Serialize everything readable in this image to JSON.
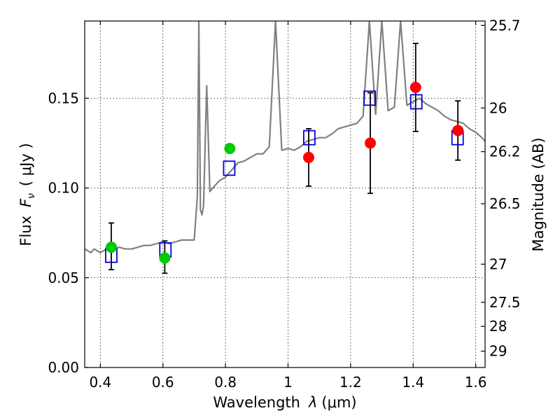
{
  "chart_data": {
    "type": "scatter",
    "xlabel_prefix": "Wavelength",
    "xlabel_symbol": "λ",
    "xlabel_unit": "(μm)",
    "ylabel_prefix": "Flux",
    "ylabel_symbol": "F",
    "ylabel_subscript": "ν",
    "ylabel_unit": "( μJy )",
    "y2label": "Magnitude (AB)",
    "xlim": [
      0.35,
      1.63
    ],
    "ylim": [
      0.0,
      0.193
    ],
    "grid": true,
    "x_ticks": [
      {
        "value": 0.4,
        "label": "0.4"
      },
      {
        "value": 0.6,
        "label": "0.6"
      },
      {
        "value": 0.8,
        "label": "0.8"
      },
      {
        "value": 1.0,
        "label": "1"
      },
      {
        "value": 1.2,
        "label": "1.2"
      },
      {
        "value": 1.4,
        "label": "1.4"
      },
      {
        "value": 1.6,
        "label": "1.6"
      }
    ],
    "y_ticks": [
      {
        "value": 0.0,
        "label": "0.00"
      },
      {
        "value": 0.05,
        "label": "0.05"
      },
      {
        "value": 0.1,
        "label": "0.10"
      },
      {
        "value": 0.15,
        "label": "0.15"
      }
    ],
    "y2_ticks": [
      {
        "mag": 25.7,
        "label": "25.7"
      },
      {
        "mag": 26.0,
        "label": "26"
      },
      {
        "mag": 26.2,
        "label": "26.2"
      },
      {
        "mag": 26.5,
        "label": "26.5"
      },
      {
        "mag": 27.0,
        "label": "27"
      },
      {
        "mag": 27.5,
        "label": "27.5"
      },
      {
        "mag": 28.0,
        "label": "28"
      },
      {
        "mag": 29.0,
        "label": "29"
      }
    ],
    "observed_optical": {
      "color": "#00cc00",
      "points": [
        {
          "x": 0.435,
          "y": 0.067,
          "yerr_low": 0.0125,
          "yerr_high": 0.0135
        },
        {
          "x": 0.606,
          "y": 0.061,
          "yerr_low": 0.0085,
          "yerr_high": 0.0095
        },
        {
          "x": 0.814,
          "y": 0.122,
          "yerr_low": 0.0,
          "yerr_high": 0.0
        }
      ]
    },
    "observed_nir": {
      "color": "#ff0000",
      "points": [
        {
          "x": 1.066,
          "y": 0.117,
          "yerr_low": 0.016,
          "yerr_high": 0.016
        },
        {
          "x": 1.263,
          "y": 0.125,
          "yerr_low": 0.028,
          "yerr_high": 0.028
        },
        {
          "x": 1.408,
          "y": 0.156,
          "yerr_low": 0.0245,
          "yerr_high": 0.0245
        },
        {
          "x": 1.543,
          "y": 0.132,
          "yerr_low": 0.0165,
          "yerr_high": 0.0165
        }
      ]
    },
    "model_photometry": {
      "color": "#0000dd",
      "points": [
        {
          "x": 0.435,
          "y": 0.0625
        },
        {
          "x": 0.608,
          "y": 0.0655
        },
        {
          "x": 0.812,
          "y": 0.111
        },
        {
          "x": 1.068,
          "y": 0.128
        },
        {
          "x": 1.261,
          "y": 0.15
        },
        {
          "x": 1.41,
          "y": 0.148
        },
        {
          "x": 1.542,
          "y": 0.128
        }
      ]
    },
    "model_spectrum": {
      "color": "#808080",
      "x": [
        0.35,
        0.36,
        0.37,
        0.38,
        0.39,
        0.4,
        0.42,
        0.44,
        0.46,
        0.48,
        0.5,
        0.52,
        0.54,
        0.56,
        0.58,
        0.6,
        0.62,
        0.64,
        0.66,
        0.68,
        0.7,
        0.71,
        0.715,
        0.72,
        0.725,
        0.73,
        0.74,
        0.75,
        0.76,
        0.78,
        0.8,
        0.82,
        0.84,
        0.86,
        0.88,
        0.9,
        0.92,
        0.94,
        0.96,
        0.98,
        1.0,
        1.02,
        1.04,
        1.06,
        1.08,
        1.1,
        1.12,
        1.14,
        1.16,
        1.18,
        1.2,
        1.22,
        1.24,
        1.26,
        1.28,
        1.3,
        1.32,
        1.34,
        1.36,
        1.38,
        1.4,
        1.42,
        1.44,
        1.46,
        1.48,
        1.5,
        1.52,
        1.54,
        1.56,
        1.58,
        1.6,
        1.62,
        1.63
      ],
      "y": [
        0.066,
        0.065,
        0.064,
        0.066,
        0.065,
        0.064,
        0.066,
        0.066,
        0.067,
        0.066,
        0.066,
        0.067,
        0.068,
        0.068,
        0.069,
        0.07,
        0.069,
        0.07,
        0.071,
        0.071,
        0.071,
        0.095,
        0.193,
        0.088,
        0.085,
        0.09,
        0.157,
        0.098,
        0.1,
        0.104,
        0.106,
        0.11,
        0.114,
        0.115,
        0.117,
        0.119,
        0.119,
        0.123,
        0.193,
        0.121,
        0.122,
        0.121,
        0.123,
        0.126,
        0.127,
        0.128,
        0.128,
        0.13,
        0.133,
        0.134,
        0.135,
        0.136,
        0.14,
        0.193,
        0.141,
        0.193,
        0.143,
        0.145,
        0.193,
        0.146,
        0.148,
        0.15,
        0.147,
        0.145,
        0.143,
        0.14,
        0.138,
        0.137,
        0.136,
        0.133,
        0.131,
        0.128,
        0.126
      ]
    }
  }
}
